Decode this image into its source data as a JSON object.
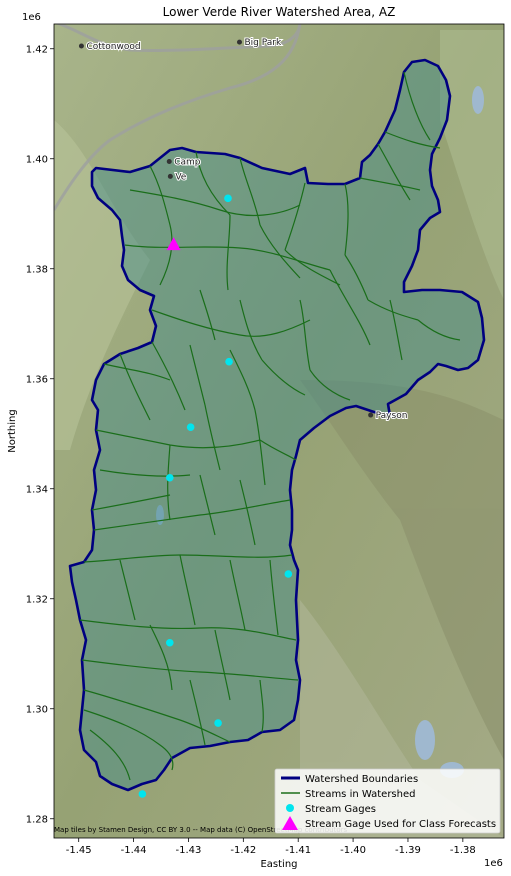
{
  "chart_data": {
    "type": "map",
    "title": "Lower Verde River Watershed Area, AZ",
    "xlabel": "Easting",
    "ylabel": "Northing",
    "x_offset_label": "1e6",
    "y_offset_label": "1e6",
    "xlim": [
      -1.4545,
      -1.3725
    ],
    "ylim": [
      1.2765,
      1.4245
    ],
    "x_ticks": [
      {
        "value": -1.45,
        "label": "-1.45"
      },
      {
        "value": -1.44,
        "label": "-1.44"
      },
      {
        "value": -1.43,
        "label": "-1.43"
      },
      {
        "value": -1.42,
        "label": "-1.42"
      },
      {
        "value": -1.41,
        "label": "-1.41"
      },
      {
        "value": -1.4,
        "label": "-1.40"
      },
      {
        "value": -1.39,
        "label": "-1.39"
      },
      {
        "value": -1.38,
        "label": "-1.38"
      }
    ],
    "y_ticks": [
      {
        "value": 1.28,
        "label": "1.28"
      },
      {
        "value": 1.3,
        "label": "1.30"
      },
      {
        "value": 1.32,
        "label": "1.32"
      },
      {
        "value": 1.34,
        "label": "1.34"
      },
      {
        "value": 1.36,
        "label": "1.36"
      },
      {
        "value": 1.38,
        "label": "1.38"
      },
      {
        "value": 1.4,
        "label": "1.40"
      },
      {
        "value": 1.42,
        "label": "1.42"
      }
    ],
    "stream_gages": [
      {
        "x": -1.4228,
        "y": 1.3928
      },
      {
        "x": -1.4226,
        "y": 1.3631
      },
      {
        "x": -1.4296,
        "y": 1.3512
      },
      {
        "x": -1.4334,
        "y": 1.342
      },
      {
        "x": -1.4118,
        "y": 1.3245
      },
      {
        "x": -1.4334,
        "y": 1.312
      },
      {
        "x": -1.4246,
        "y": 1.2974
      },
      {
        "x": -1.4384,
        "y": 1.2845
      }
    ],
    "forecast_gage": {
      "x": -1.4327,
      "y": 1.3843
    },
    "places": [
      {
        "name": "Cottonwood",
        "x": -1.4495,
        "y": 1.4205
      },
      {
        "name": "Big Park",
        "x": -1.4207,
        "y": 1.4212
      },
      {
        "name": "Camp",
        "x": -1.4335,
        "y": 1.3995
      },
      {
        "name": "Ve",
        "x": -1.4333,
        "y": 1.3968
      },
      {
        "name": "Payson",
        "x": -1.3968,
        "y": 1.3534
      }
    ],
    "legend": {
      "position": "lower right",
      "entries": [
        {
          "label": "Watershed Boundaries",
          "kind": "line",
          "color": "#000080"
        },
        {
          "label": "Streams in Watershed",
          "kind": "line",
          "color": "#1a6e1a"
        },
        {
          "label": "Stream Gages",
          "kind": "circle",
          "color": "#00e5ee"
        },
        {
          "label": "Stream Gage Used for Class Forecasts",
          "kind": "triangle",
          "color": "#ff00ff"
        }
      ]
    },
    "attribution": "Map tiles by Stamen Design, CC BY 3.0 -- Map data (C) OpenStreetMap contributors",
    "colors": {
      "boundary": "#000080",
      "streams": "#1a6e1a",
      "gage": "#00e5ee",
      "forecast_gage": "#ff00ff",
      "fill": "#3d8a8a",
      "terrain": "#9aa77a"
    }
  }
}
